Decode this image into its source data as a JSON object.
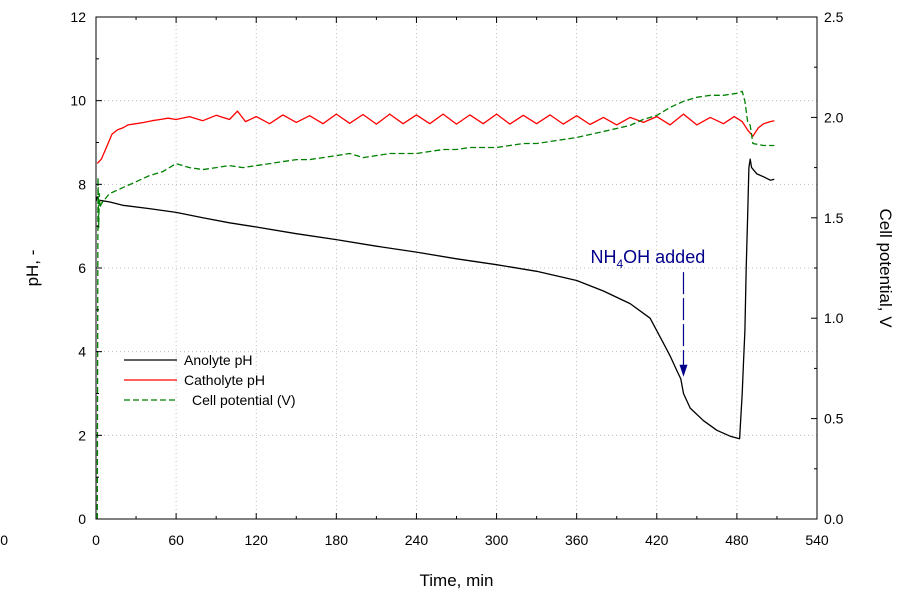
{
  "chart_data": {
    "type": "line",
    "xlabel": "Time, min",
    "ylabel": "pH, -",
    "y2label": "Cell potential, V",
    "xlim": [
      0,
      540
    ],
    "ylim": [
      0,
      12
    ],
    "y2lim": [
      0,
      2.5
    ],
    "x_ticks": [
      0,
      60,
      120,
      180,
      240,
      300,
      360,
      420,
      480,
      540
    ],
    "y_ticks": [
      0,
      2,
      4,
      6,
      8,
      10,
      12
    ],
    "y2_ticks": [
      "0.0",
      "0.5",
      "1.0",
      "1.5",
      "2.0",
      "2.5"
    ],
    "grid": true,
    "legend_position": "lower-left",
    "stray_label": "0",
    "series": [
      {
        "name": "Anolyte pH",
        "axis": "left",
        "color": "#000000",
        "style": "solid",
        "x": [
          0,
          1,
          2,
          10,
          20,
          40,
          60,
          80,
          100,
          120,
          150,
          180,
          210,
          240,
          270,
          300,
          330,
          360,
          380,
          400,
          415,
          425,
          430,
          435,
          438,
          440,
          445,
          455,
          465,
          475,
          482,
          484,
          485,
          486,
          487,
          488,
          489,
          490,
          491,
          495,
          500,
          505,
          508
        ],
        "y": [
          7.6,
          7.7,
          7.62,
          7.58,
          7.5,
          7.42,
          7.33,
          7.2,
          7.08,
          6.98,
          6.82,
          6.68,
          6.52,
          6.38,
          6.22,
          6.08,
          5.92,
          5.7,
          5.45,
          5.15,
          4.8,
          4.2,
          3.9,
          3.55,
          3.35,
          3.0,
          2.65,
          2.35,
          2.12,
          1.98,
          1.92,
          3.0,
          3.8,
          4.5,
          6.0,
          7.2,
          8.4,
          8.6,
          8.4,
          8.25,
          8.18,
          8.1,
          8.12
        ]
      },
      {
        "name": "Catholyte pH",
        "axis": "left",
        "color": "#ff0000",
        "style": "solid",
        "x": [
          1,
          4,
          8,
          12,
          16,
          20,
          24,
          30,
          36,
          42,
          48,
          54,
          60,
          70,
          80,
          90,
          100,
          106,
          112,
          120,
          130,
          140,
          150,
          160,
          170,
          180,
          190,
          200,
          210,
          220,
          230,
          240,
          250,
          260,
          270,
          280,
          290,
          300,
          310,
          320,
          330,
          340,
          350,
          360,
          370,
          380,
          390,
          400,
          410,
          420,
          430,
          440,
          450,
          460,
          470,
          478,
          484,
          488,
          492,
          496,
          500,
          505,
          508
        ],
        "y": [
          8.5,
          8.6,
          8.9,
          9.2,
          9.3,
          9.35,
          9.42,
          9.45,
          9.48,
          9.52,
          9.55,
          9.58,
          9.55,
          9.62,
          9.52,
          9.65,
          9.55,
          9.75,
          9.5,
          9.62,
          9.45,
          9.66,
          9.48,
          9.64,
          9.45,
          9.68,
          9.46,
          9.67,
          9.44,
          9.68,
          9.45,
          9.66,
          9.45,
          9.68,
          9.44,
          9.66,
          9.45,
          9.68,
          9.44,
          9.65,
          9.45,
          9.66,
          9.44,
          9.64,
          9.43,
          9.6,
          9.42,
          9.6,
          9.48,
          9.62,
          9.42,
          9.68,
          9.42,
          9.6,
          9.45,
          9.62,
          9.5,
          9.3,
          9.15,
          9.35,
          9.45,
          9.5,
          9.52
        ]
      },
      {
        "name": "Cell potential (V)",
        "axis": "right",
        "color": "#008000",
        "style": "dashed",
        "x": [
          1,
          1.5,
          2,
          2.5,
          3,
          4,
          10,
          20,
          30,
          40,
          50,
          60,
          70,
          80,
          90,
          100,
          110,
          120,
          130,
          140,
          150,
          160,
          170,
          180,
          190,
          200,
          210,
          220,
          230,
          240,
          250,
          260,
          270,
          280,
          290,
          300,
          310,
          320,
          330,
          340,
          350,
          360,
          380,
          400,
          410,
          420,
          430,
          440,
          450,
          460,
          470,
          480,
          484,
          486,
          488,
          490,
          492,
          500,
          508
        ],
        "y": [
          0.0,
          1.7,
          1.45,
          1.62,
          1.55,
          1.57,
          1.62,
          1.65,
          1.68,
          1.71,
          1.73,
          1.77,
          1.75,
          1.74,
          1.75,
          1.76,
          1.75,
          1.76,
          1.77,
          1.78,
          1.79,
          1.79,
          1.8,
          1.81,
          1.82,
          1.8,
          1.81,
          1.82,
          1.82,
          1.82,
          1.83,
          1.84,
          1.84,
          1.85,
          1.85,
          1.85,
          1.86,
          1.87,
          1.87,
          1.88,
          1.89,
          1.9,
          1.93,
          1.96,
          1.99,
          2.01,
          2.05,
          2.08,
          2.1,
          2.11,
          2.11,
          2.12,
          2.13,
          2.08,
          1.98,
          1.96,
          1.87,
          1.86,
          1.86
        ]
      }
    ],
    "annotation": {
      "text_main": "NH",
      "text_sub": "4",
      "text_rest": "OH added",
      "color": "#00008b",
      "arrow_x": 440,
      "arrow_y_from": 5.9,
      "arrow_y_to": 3.4
    }
  }
}
